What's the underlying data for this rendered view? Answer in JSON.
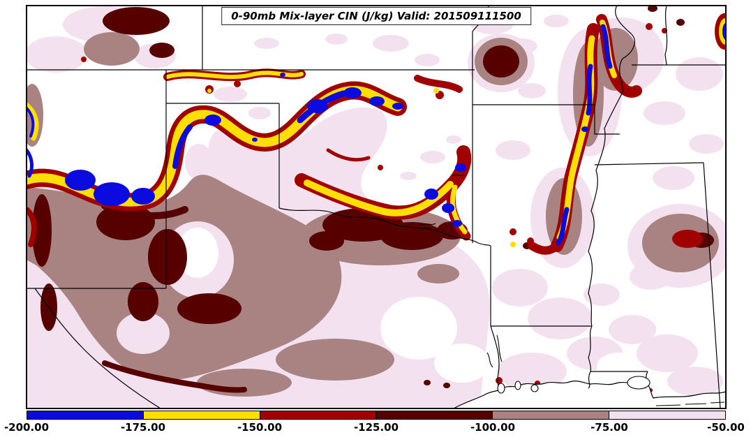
{
  "title": "0-90mb Mix-layer CIN (J/kg) Valid: 201509111500",
  "chart_data": {
    "type": "heatmap",
    "subtype": "filled-contour-map",
    "title": "0-90mb Mix-layer CIN (J/kg) Valid: 201509111500",
    "variable": "0-90mb Mix-layer CIN",
    "units": "J/kg",
    "valid_time": "201509111500",
    "region": "South-central United States (CO, KS, MO, NM, TX, OK, AR, LA, MS shown by state outlines)",
    "levels": [
      -200,
      -175,
      -150,
      -125,
      -100,
      -75,
      -50
    ],
    "tick_labels": [
      "-200.00",
      "-175.00",
      "-150.00",
      "-125.00",
      "-100.00",
      "-75.00",
      "-50.00"
    ],
    "level_colors": [
      "#0b0bdf",
      "#ffdf00",
      "#a00000",
      "#570000",
      "#a98282",
      "#f3e1ef"
    ],
    "background_fill": "#ffffff",
    "legend_position": "bottom",
    "grid": false,
    "notes": "Strongest CIN (blue/yellow, -200 to -150) forms an arc from eastern New Mexico across the TX/OK panhandles into southern Kansas and north-central Oklahoma, with a second band over the Missouri bootheel and eastern Arkansas; broad -100 to -75 (mauve) and -125 to -100 (maroon) CIN covers west and north-central Texas; white areas exceed -50."
  },
  "colorbar": {
    "ticks": [
      "-200.00",
      "-175.00",
      "-150.00",
      "-125.00",
      "-100.00",
      "-75.00",
      "-50.00"
    ],
    "colors": [
      "#0b0bdf",
      "#ffdf00",
      "#a00000",
      "#570000",
      "#a98282",
      "#f3e1ef"
    ]
  },
  "map": {
    "frame_color": "#000000",
    "state_border_color": "#000000"
  }
}
